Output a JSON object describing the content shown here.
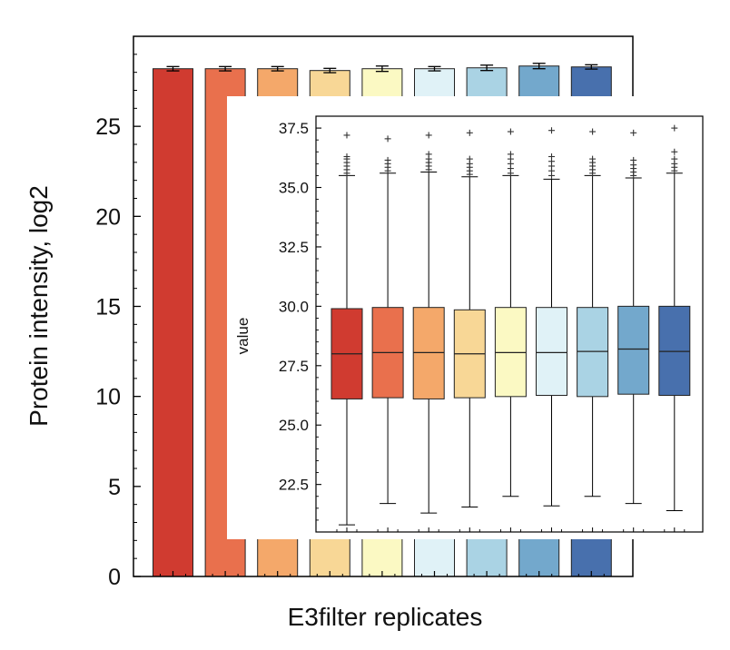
{
  "main_chart": {
    "ylabel": "Protein intensity, log2",
    "xlabel": "E3filter replicates"
  },
  "inset_chart": {
    "ylabel": "value"
  },
  "chart_data": [
    {
      "type": "bar",
      "ylabel": "Protein intensity, log2",
      "xlabel": "E3filter replicates",
      "ylim": [
        0,
        30
      ],
      "yticks": [
        0,
        5,
        10,
        15,
        20,
        25
      ],
      "grid": false,
      "values": [
        28.2,
        28.2,
        28.2,
        28.1,
        28.2,
        28.2,
        28.25,
        28.35,
        28.3
      ],
      "errors": [
        0.12,
        0.12,
        0.12,
        0.12,
        0.15,
        0.12,
        0.15,
        0.15,
        0.12
      ],
      "colors": [
        "#d03b30",
        "#e9704d",
        "#f4a86a",
        "#f8d796",
        "#fbf9c3",
        "#e0f2f7",
        "#aad3e4",
        "#73a8cc",
        "#4870ad"
      ]
    },
    {
      "type": "box",
      "ylabel": "value",
      "ylim": [
        20.5,
        38.0
      ],
      "yticks": [
        22.5,
        25.0,
        27.5,
        30.0,
        32.5,
        35.0,
        37.5
      ],
      "grid": false,
      "colors": [
        "#d03b30",
        "#e9704d",
        "#f4a86a",
        "#f8d796",
        "#fbf9c3",
        "#e0f2f7",
        "#aad3e4",
        "#73a8cc",
        "#4870ad"
      ],
      "boxes": [
        {
          "min": 20.8,
          "q1": 26.1,
          "median": 28.0,
          "q3": 29.9,
          "max": 35.5,
          "outliers": [
            35.6,
            35.75,
            35.9,
            36.05,
            36.2,
            36.3,
            37.2
          ]
        },
        {
          "min": 21.7,
          "q1": 26.15,
          "median": 28.05,
          "q3": 29.95,
          "max": 35.6,
          "outliers": [
            35.7,
            35.85,
            36.0,
            36.15,
            37.05
          ]
        },
        {
          "min": 21.3,
          "q1": 26.1,
          "median": 28.05,
          "q3": 29.95,
          "max": 35.65,
          "outliers": [
            35.75,
            35.9,
            36.05,
            36.2,
            36.4,
            37.2
          ]
        },
        {
          "min": 21.55,
          "q1": 26.15,
          "median": 28.0,
          "q3": 29.85,
          "max": 35.45,
          "outliers": [
            35.55,
            35.7,
            35.85,
            36.0,
            36.2,
            37.3
          ]
        },
        {
          "min": 22.0,
          "q1": 26.2,
          "median": 28.05,
          "q3": 29.95,
          "max": 35.5,
          "outliers": [
            35.6,
            35.8,
            36.0,
            36.2,
            36.4,
            37.35
          ]
        },
        {
          "min": 21.6,
          "q1": 26.25,
          "median": 28.05,
          "q3": 29.95,
          "max": 35.35,
          "outliers": [
            35.5,
            35.7,
            35.9,
            36.1,
            36.3,
            37.4
          ]
        },
        {
          "min": 22.0,
          "q1": 26.2,
          "median": 28.1,
          "q3": 29.95,
          "max": 35.5,
          "outliers": [
            35.6,
            35.75,
            35.9,
            36.05,
            36.2,
            37.35
          ]
        },
        {
          "min": 21.7,
          "q1": 26.3,
          "median": 28.2,
          "q3": 30.0,
          "max": 35.4,
          "outliers": [
            35.5,
            35.65,
            35.8,
            35.95,
            36.15,
            37.3
          ]
        },
        {
          "min": 21.4,
          "q1": 26.25,
          "median": 28.1,
          "q3": 30.0,
          "max": 35.6,
          "outliers": [
            35.7,
            35.85,
            36.0,
            36.2,
            36.5,
            37.5
          ]
        }
      ]
    }
  ]
}
